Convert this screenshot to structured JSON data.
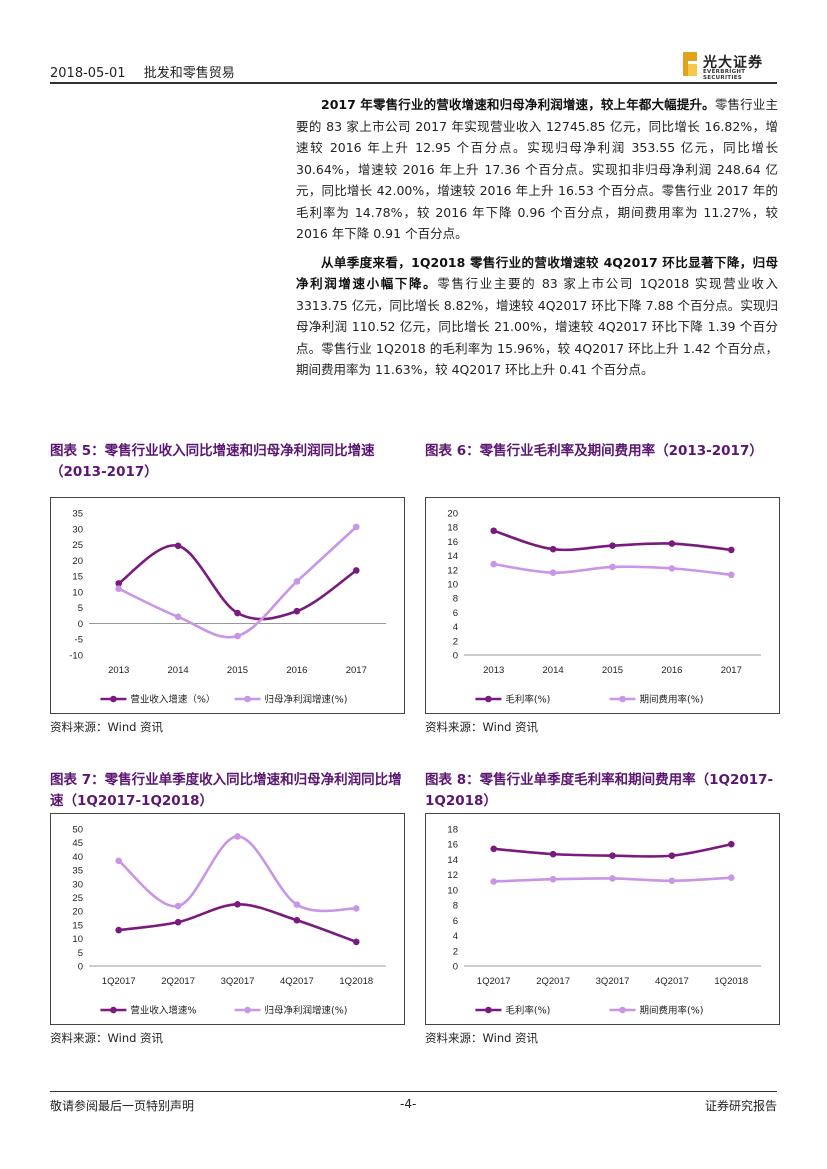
{
  "header": {
    "date": "2018-05-01",
    "sector": "批发和零售贸易",
    "logo_cn": "光大证券",
    "logo_en": "EVERBRIGHT SECURITIES"
  },
  "paragraphs": [
    {
      "bold": "2017 年零售行业的营收增速和归母净利润增速，较上年都大幅提升。",
      "text": "零售行业主要的 83 家上市公司 2017 年实现营业收入 12745.85 亿元，同比增长 16.82%，增速较 2016 年上升 12.95 个百分点。实现归母净利润 353.55 亿元，同比增长 30.64%，增速较 2016 年上升 17.36 个百分点。实现扣非归母净利润 248.64 亿元，同比增长 42.00%，增速较 2016 年上升 16.53 个百分点。零售行业 2017 年的毛利率为 14.78%，较 2016 年下降 0.96 个百分点，期间费用率为 11.27%，较 2016 年下降 0.91 个百分点。"
    },
    {
      "bold": "从单季度来看，1Q2018 零售行业的营收增速较 4Q2017 环比显著下降，归母净利润增速小幅下降。",
      "text": "零售行业主要的 83 家上市公司 1Q2018 实现营业收入 3313.75 亿元，同比增长 8.82%，增速较 4Q2017 环比下降 7.88 个百分点。实现归母净利润 110.52 亿元，同比增长 21.00%，增速较 4Q2017 环比下降 1.39 个百分点。零售行业 1Q2018 的毛利率为 15.96%，较 4Q2017 环比上升 1.42 个百分点，期间费用率为 11.63%，较 4Q2017 环比上升 0.41 个百分点。"
    }
  ],
  "colors": {
    "dark": "#7a1a7e",
    "light": "#c996e6",
    "title": "#5a1670"
  },
  "figures": [
    {
      "title": "图表 5：零售行业收入同比增速和归母净利润同比增速（2013-2017）",
      "source": "资料来源：Wind 资讯"
    },
    {
      "title": "图表 6：零售行业毛利率及期间费用率（2013-2017）",
      "source": "资料来源：Wind 资讯"
    },
    {
      "title": "图表 7：零售行业单季度收入同比增速和归母净利润同比增速（1Q2017-1Q2018）",
      "source": "资料来源：Wind 资讯"
    },
    {
      "title": "图表 8：零售行业单季度毛利率和期间费用率（1Q2017-1Q2018）",
      "source": "资料来源：Wind 资讯"
    }
  ],
  "chart_data": [
    {
      "type": "line",
      "categories": [
        "2013",
        "2014",
        "2015",
        "2016",
        "2017"
      ],
      "ylim": [
        -10,
        35
      ],
      "yticks": [
        -10,
        -5,
        0,
        5,
        10,
        15,
        20,
        25,
        30,
        35
      ],
      "series": [
        {
          "name": "营业收入增速（%）",
          "values": [
            12.7,
            24.6,
            3.3,
            3.9,
            16.8
          ]
        },
        {
          "name": "归母净利润增速(%)",
          "values": [
            11.0,
            2.1,
            -4.0,
            13.3,
            30.6
          ]
        }
      ],
      "legend": "bottom",
      "grid": false
    },
    {
      "type": "line",
      "categories": [
        "2013",
        "2014",
        "2015",
        "2016",
        "2017"
      ],
      "ylim": [
        0,
        20
      ],
      "yticks": [
        0,
        2,
        4,
        6,
        8,
        10,
        12,
        14,
        16,
        18,
        20
      ],
      "series": [
        {
          "name": "毛利率(%)",
          "values": [
            17.5,
            14.9,
            15.4,
            15.7,
            14.8
          ]
        },
        {
          "name": "期间费用率(%)",
          "values": [
            12.8,
            11.6,
            12.4,
            12.2,
            11.3
          ]
        }
      ],
      "legend": "bottom",
      "grid": false
    },
    {
      "type": "line",
      "categories": [
        "1Q2017",
        "2Q2017",
        "3Q2017",
        "4Q2017",
        "1Q2018"
      ],
      "ylim": [
        0,
        50
      ],
      "yticks": [
        0,
        5,
        10,
        15,
        20,
        25,
        30,
        35,
        40,
        45,
        50
      ],
      "series": [
        {
          "name": "营业收入增速%",
          "values": [
            13.1,
            16.0,
            22.5,
            16.7,
            8.8
          ]
        },
        {
          "name": "归母净利润增速(%)",
          "values": [
            38.4,
            21.9,
            47.3,
            22.4,
            21.0
          ]
        }
      ],
      "legend": "bottom",
      "grid": false
    },
    {
      "type": "line",
      "categories": [
        "1Q2017",
        "2Q2017",
        "3Q2017",
        "4Q2017",
        "1Q2018"
      ],
      "ylim": [
        0,
        18
      ],
      "yticks": [
        0,
        2,
        4,
        6,
        8,
        10,
        12,
        14,
        16,
        18
      ],
      "series": [
        {
          "name": "毛利率(%)",
          "values": [
            15.4,
            14.7,
            14.5,
            14.5,
            16.0
          ]
        },
        {
          "name": "期间费用率(%)",
          "values": [
            11.1,
            11.4,
            11.5,
            11.2,
            11.6
          ]
        }
      ],
      "legend": "bottom",
      "grid": false
    }
  ],
  "footer": {
    "disclaimer": "敬请参阅最后一页特别声明",
    "page": "-4-",
    "report_type": "证券研究报告"
  }
}
